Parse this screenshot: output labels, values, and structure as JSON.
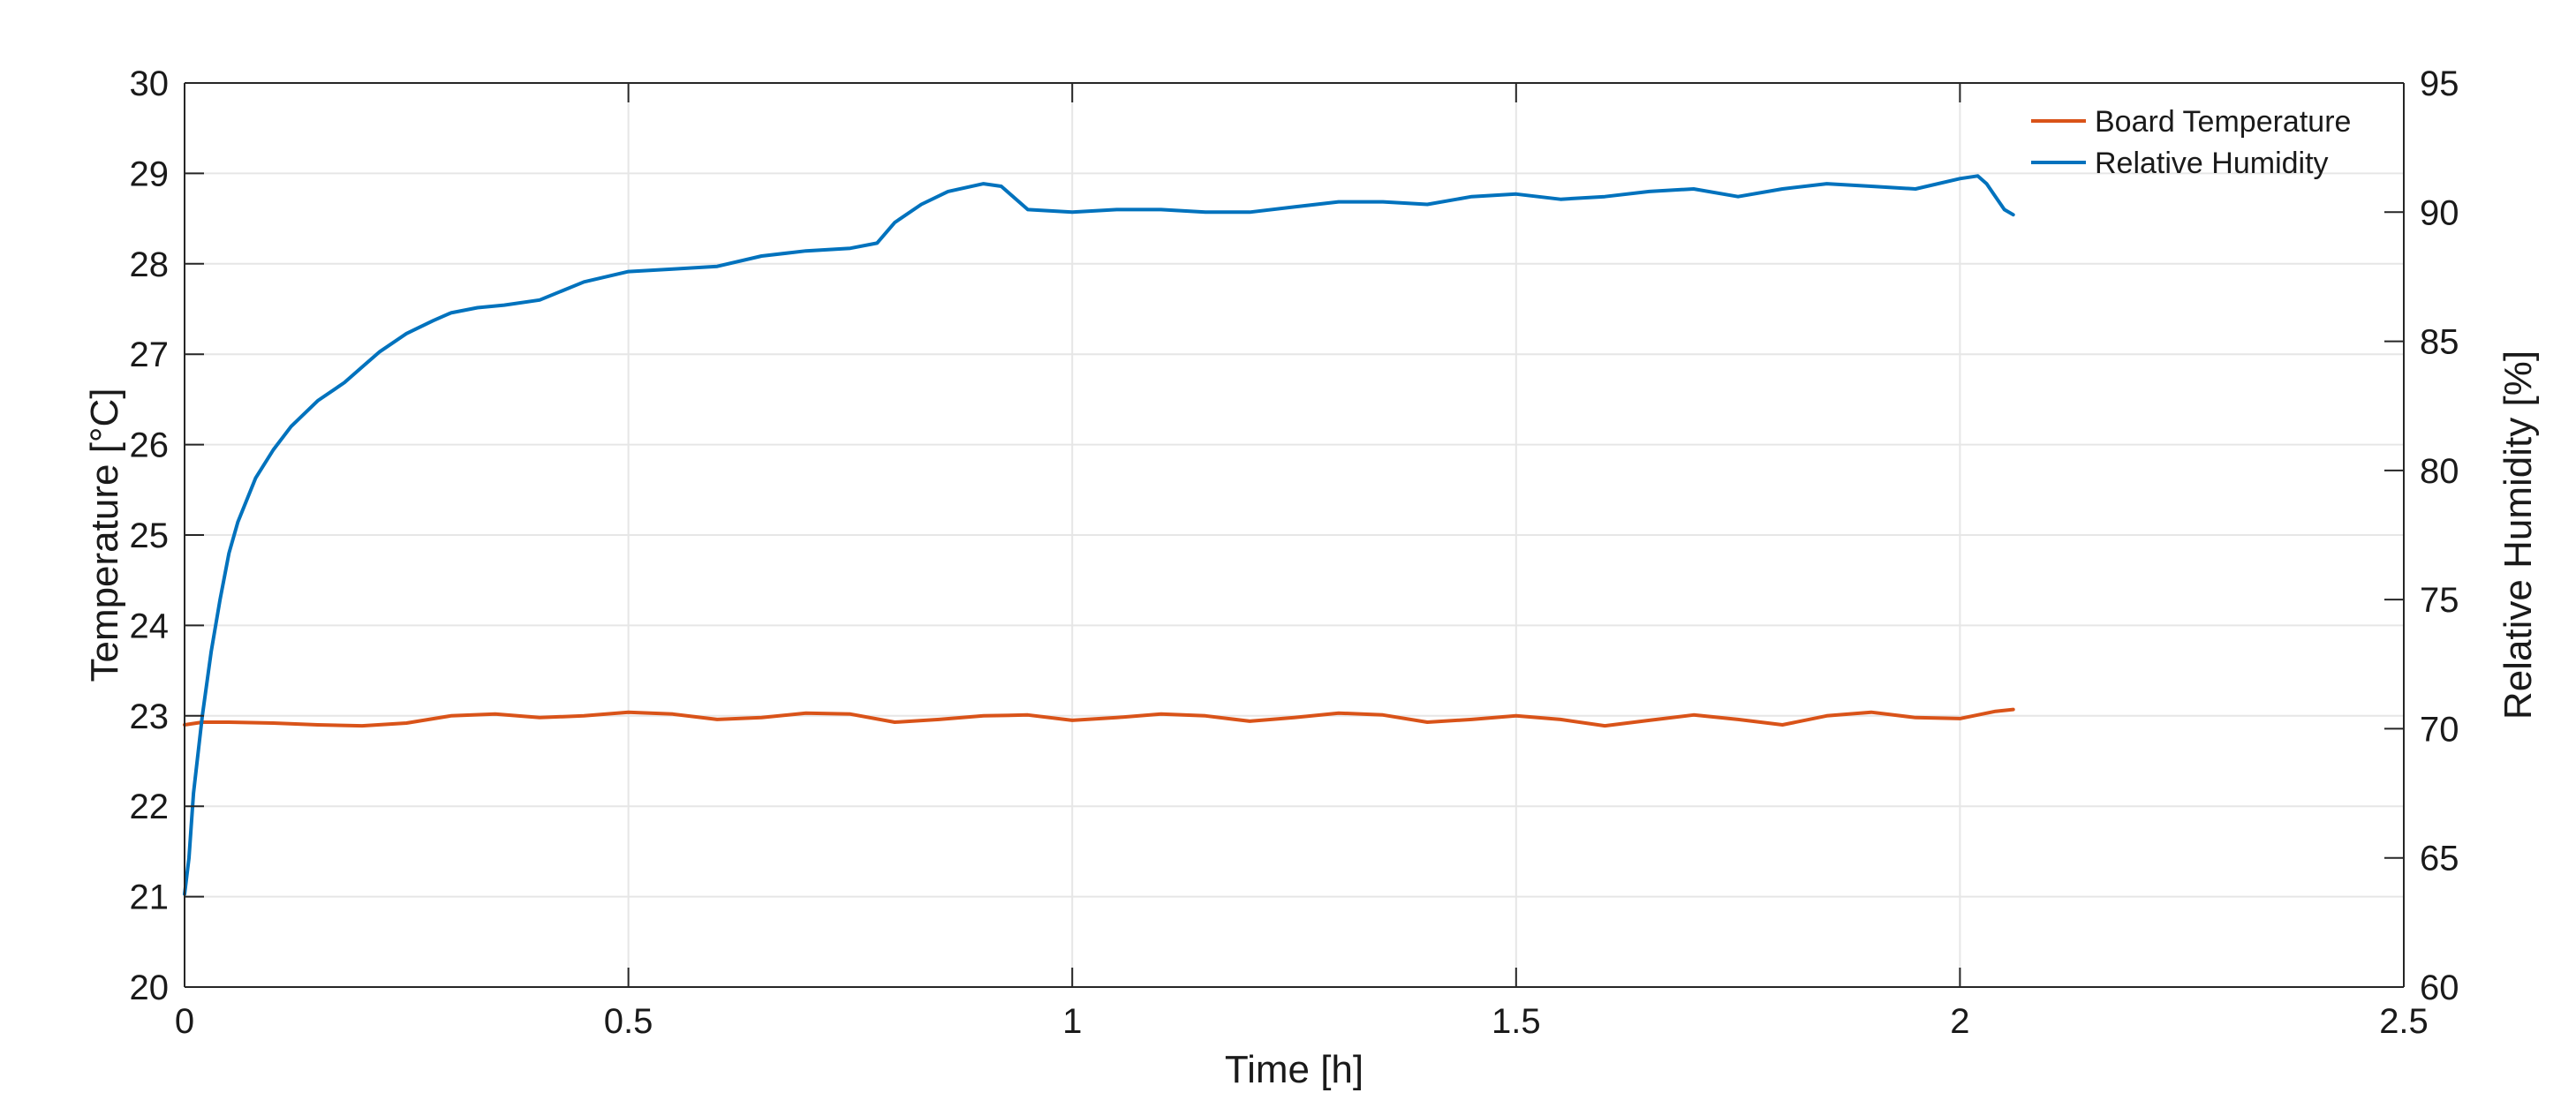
{
  "chart_data": {
    "type": "line",
    "title": "",
    "xlabel": "Time [h]",
    "ylabel_left": "Temperature [°C]",
    "ylabel_right": "Relative Humidity [%]",
    "xlim": [
      0,
      2.5
    ],
    "ylim_left": [
      20,
      30
    ],
    "ylim_right": [
      60,
      95
    ],
    "x_ticks": [
      0,
      0.5,
      1,
      1.5,
      2,
      2.5
    ],
    "x_tick_labels": [
      "0",
      "0.5",
      "1",
      "1.5",
      "2",
      "2.5"
    ],
    "y_left_ticks": [
      20,
      21,
      22,
      23,
      24,
      25,
      26,
      27,
      28,
      29,
      30
    ],
    "y_left_tick_labels": [
      "20",
      "21",
      "22",
      "23",
      "24",
      "25",
      "26",
      "27",
      "28",
      "29",
      "30"
    ],
    "y_right_ticks": [
      60,
      65,
      70,
      75,
      80,
      85,
      90,
      95
    ],
    "y_right_tick_labels": [
      "60",
      "65",
      "70",
      "75",
      "80",
      "85",
      "90",
      "95"
    ],
    "grid": true,
    "legend_position": "top-right",
    "series": [
      {
        "name": "Board Temperature",
        "axis": "left",
        "color": "#d95319",
        "x": [
          0,
          0.02,
          0.05,
          0.1,
          0.15,
          0.2,
          0.25,
          0.3,
          0.35,
          0.4,
          0.45,
          0.5,
          0.55,
          0.6,
          0.65,
          0.7,
          0.75,
          0.8,
          0.85,
          0.9,
          0.95,
          1.0,
          1.05,
          1.1,
          1.15,
          1.2,
          1.25,
          1.3,
          1.35,
          1.4,
          1.45,
          1.5,
          1.55,
          1.6,
          1.65,
          1.7,
          1.75,
          1.8,
          1.85,
          1.9,
          1.95,
          2.0,
          2.04,
          2.06
        ],
        "y": [
          22.9,
          22.93,
          22.93,
          22.92,
          22.9,
          22.89,
          22.92,
          23.0,
          23.02,
          22.98,
          23.0,
          23.04,
          23.02,
          22.96,
          22.98,
          23.03,
          23.02,
          22.93,
          22.96,
          23.0,
          23.01,
          22.95,
          22.98,
          23.02,
          23.0,
          22.94,
          22.98,
          23.03,
          23.01,
          22.93,
          22.96,
          23.0,
          22.96,
          22.89,
          22.95,
          23.01,
          22.96,
          22.9,
          23.0,
          23.04,
          22.98,
          22.97,
          23.05,
          23.07
        ]
      },
      {
        "name": "Relative Humidity",
        "axis": "right",
        "color": "#0072bd",
        "x": [
          0,
          0.005,
          0.01,
          0.02,
          0.03,
          0.04,
          0.05,
          0.06,
          0.08,
          0.1,
          0.12,
          0.15,
          0.18,
          0.2,
          0.22,
          0.25,
          0.28,
          0.3,
          0.33,
          0.36,
          0.4,
          0.45,
          0.5,
          0.55,
          0.6,
          0.65,
          0.7,
          0.75,
          0.78,
          0.8,
          0.83,
          0.86,
          0.9,
          0.92,
          0.95,
          1.0,
          1.05,
          1.1,
          1.15,
          1.2,
          1.25,
          1.3,
          1.35,
          1.4,
          1.45,
          1.5,
          1.55,
          1.6,
          1.65,
          1.7,
          1.75,
          1.8,
          1.85,
          1.9,
          1.95,
          2.0,
          2.02,
          2.03,
          2.04,
          2.05,
          2.06
        ],
        "y": [
          63.6,
          65.0,
          67.5,
          70.5,
          73.0,
          75.0,
          76.8,
          78.0,
          79.7,
          80.8,
          81.7,
          82.7,
          83.4,
          84.0,
          84.6,
          85.3,
          85.8,
          86.1,
          86.3,
          86.4,
          86.6,
          87.3,
          87.7,
          87.8,
          87.9,
          88.3,
          88.5,
          88.6,
          88.8,
          89.6,
          90.3,
          90.8,
          91.1,
          91.0,
          90.1,
          90.0,
          90.1,
          90.1,
          90.0,
          90.0,
          90.2,
          90.4,
          90.4,
          90.3,
          90.6,
          90.7,
          90.5,
          90.6,
          90.8,
          90.9,
          90.6,
          90.9,
          91.1,
          91.0,
          90.9,
          91.3,
          91.4,
          91.1,
          90.6,
          90.1,
          89.9
        ]
      }
    ]
  }
}
